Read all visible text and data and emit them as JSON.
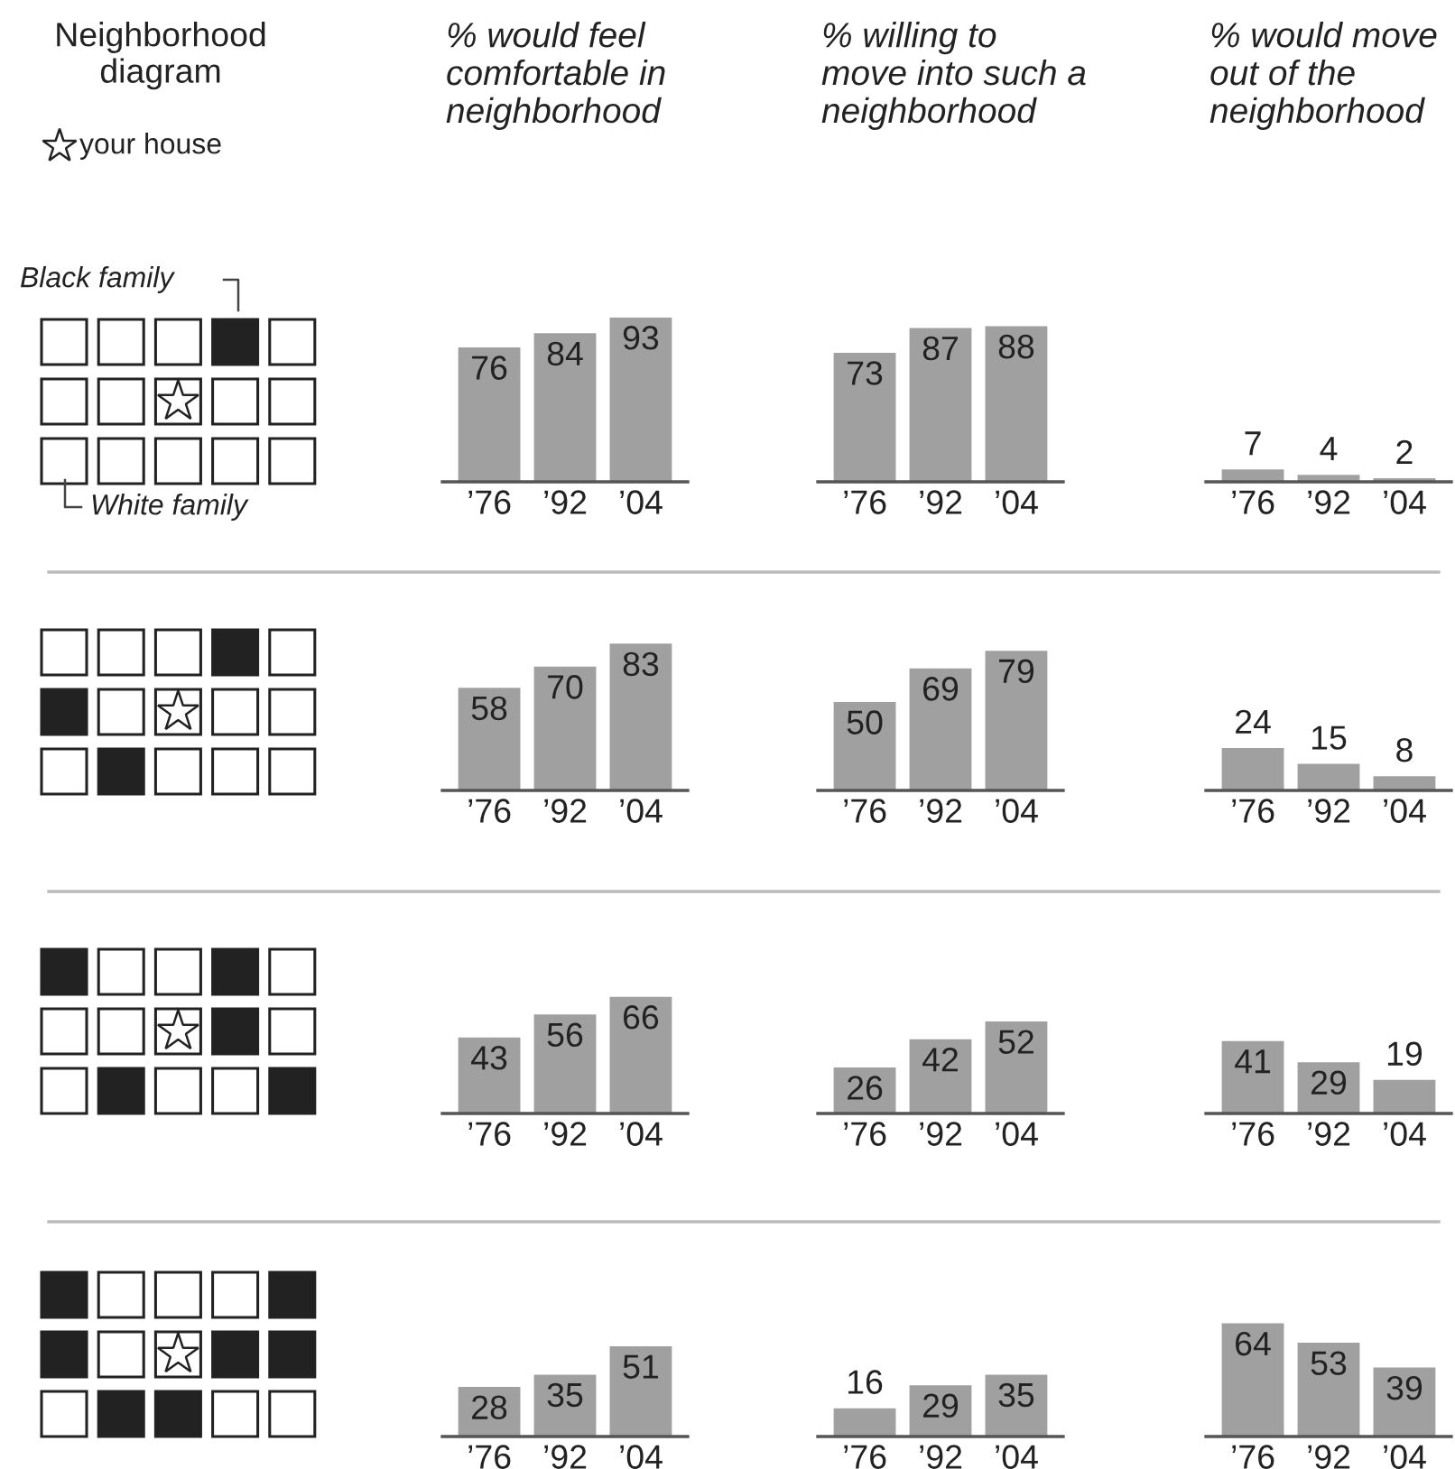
{
  "chart_data": [
    {
      "type": "other",
      "annotations": [
        "Neighborhood diagram",
        "your house",
        "Black family",
        "White family"
      ]
    },
    {
      "type": "bar",
      "title": "% would feel comfortable in neighborhood",
      "categories": [
        "’76",
        "’92",
        "’04"
      ],
      "values": [
        76,
        84,
        93
      ],
      "color": "#a0a0a0",
      "data_labels": true
    },
    {
      "type": "bar",
      "title": "% willing to move into such a neighborhood",
      "categories": [
        "’76",
        "’92",
        "’04"
      ],
      "values": [
        73,
        87,
        88
      ],
      "color": "#a0a0a0",
      "data_labels": true
    },
    {
      "type": "bar",
      "title": "% would move out of the neighborhood",
      "categories": [
        "’76",
        "’92",
        "’04"
      ],
      "values": [
        7,
        4,
        2
      ],
      "color": "#a0a0a0",
      "data_labels": true
    },
    {
      "type": "bar",
      "categories": [
        "’76",
        "’92",
        "’04"
      ],
      "values": [
        58,
        70,
        83
      ],
      "color": "#a0a0a0",
      "data_labels": true
    },
    {
      "type": "bar",
      "categories": [
        "’76",
        "’92",
        "’04"
      ],
      "values": [
        50,
        69,
        79
      ],
      "color": "#a0a0a0",
      "data_labels": true
    },
    {
      "type": "bar",
      "categories": [
        "’76",
        "’92",
        "’04"
      ],
      "values": [
        24,
        15,
        8
      ],
      "color": "#a0a0a0",
      "data_labels": true
    },
    {
      "type": "bar",
      "categories": [
        "’76",
        "’92",
        "’04"
      ],
      "values": [
        43,
        56,
        66
      ],
      "color": "#a0a0a0",
      "data_labels": true
    },
    {
      "type": "bar",
      "categories": [
        "’76",
        "’92",
        "’04"
      ],
      "values": [
        26,
        42,
        52
      ],
      "color": "#a0a0a0",
      "data_labels": true
    },
    {
      "type": "bar",
      "categories": [
        "’76",
        "’92",
        "’04"
      ],
      "values": [
        41,
        29,
        19
      ],
      "color": "#a0a0a0",
      "data_labels": true
    },
    {
      "type": "bar",
      "categories": [
        "’76",
        "’92",
        "’04"
      ],
      "values": [
        28,
        35,
        51
      ],
      "color": "#a0a0a0",
      "data_labels": true
    },
    {
      "type": "bar",
      "categories": [
        "’76",
        "’92",
        "’04"
      ],
      "values": [
        16,
        29,
        35
      ],
      "color": "#a0a0a0",
      "data_labels": true
    },
    {
      "type": "bar",
      "categories": [
        "’76",
        "’92",
        "’04"
      ],
      "values": [
        64,
        53,
        39
      ],
      "color": "#a0a0a0",
      "data_labels": true
    }
  ]
}
